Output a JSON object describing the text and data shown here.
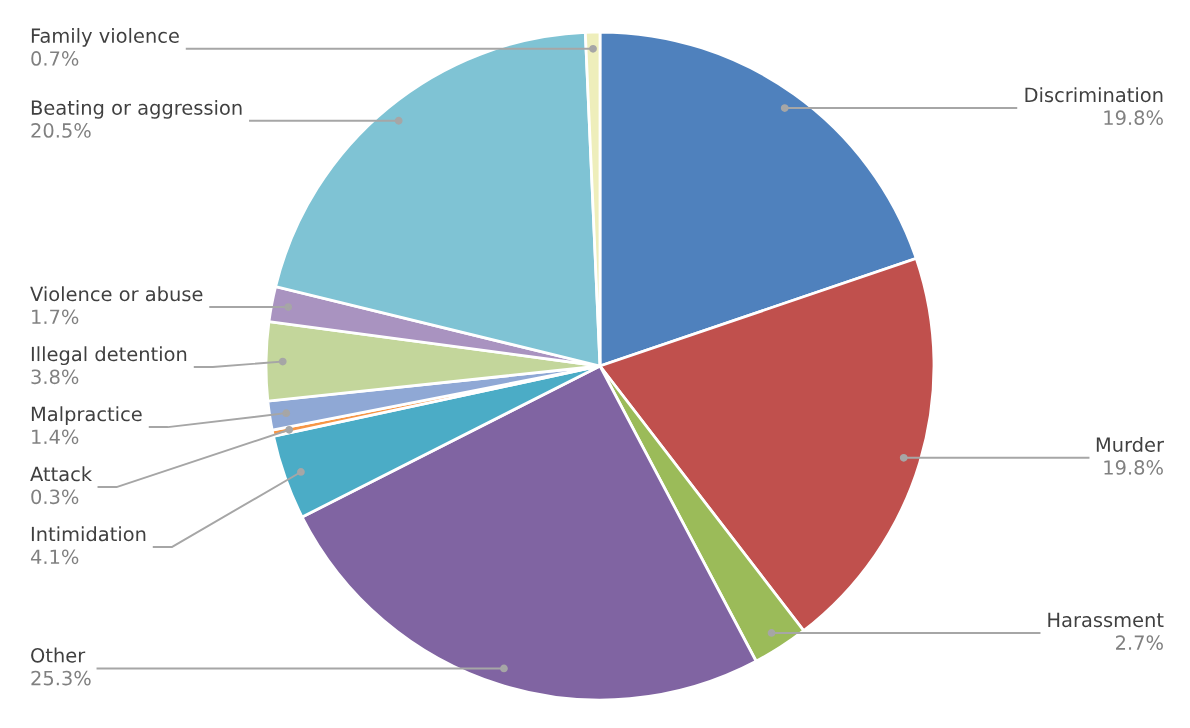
{
  "chart_data": {
    "type": "pie",
    "categories": [
      "Discrimination",
      "Murder",
      "Harassment",
      "Other",
      "Intimidation",
      "Attack",
      "Malpractice",
      "Illegal detention",
      "Violence or abuse",
      "Beating or aggression",
      "Family violence"
    ],
    "values": [
      19.8,
      19.8,
      2.7,
      25.3,
      4.1,
      0.3,
      1.4,
      3.8,
      1.7,
      20.5,
      0.7
    ],
    "colors": [
      "#4f81bd",
      "#c0504d",
      "#9bbb59",
      "#8064a2",
      "#4bacc6",
      "#f79646",
      "#8fa8d5",
      "#c3d69b",
      "#a993c0",
      "#7fc3d4",
      "#eeeebb"
    ],
    "value_labels": [
      "19.8%",
      "19.8%",
      "2.7%",
      "25.3%",
      "4.1%",
      "0.3%",
      "1.4%",
      "3.8%",
      "1.7%",
      "20.5%",
      "0.7%"
    ],
    "legend": false
  }
}
